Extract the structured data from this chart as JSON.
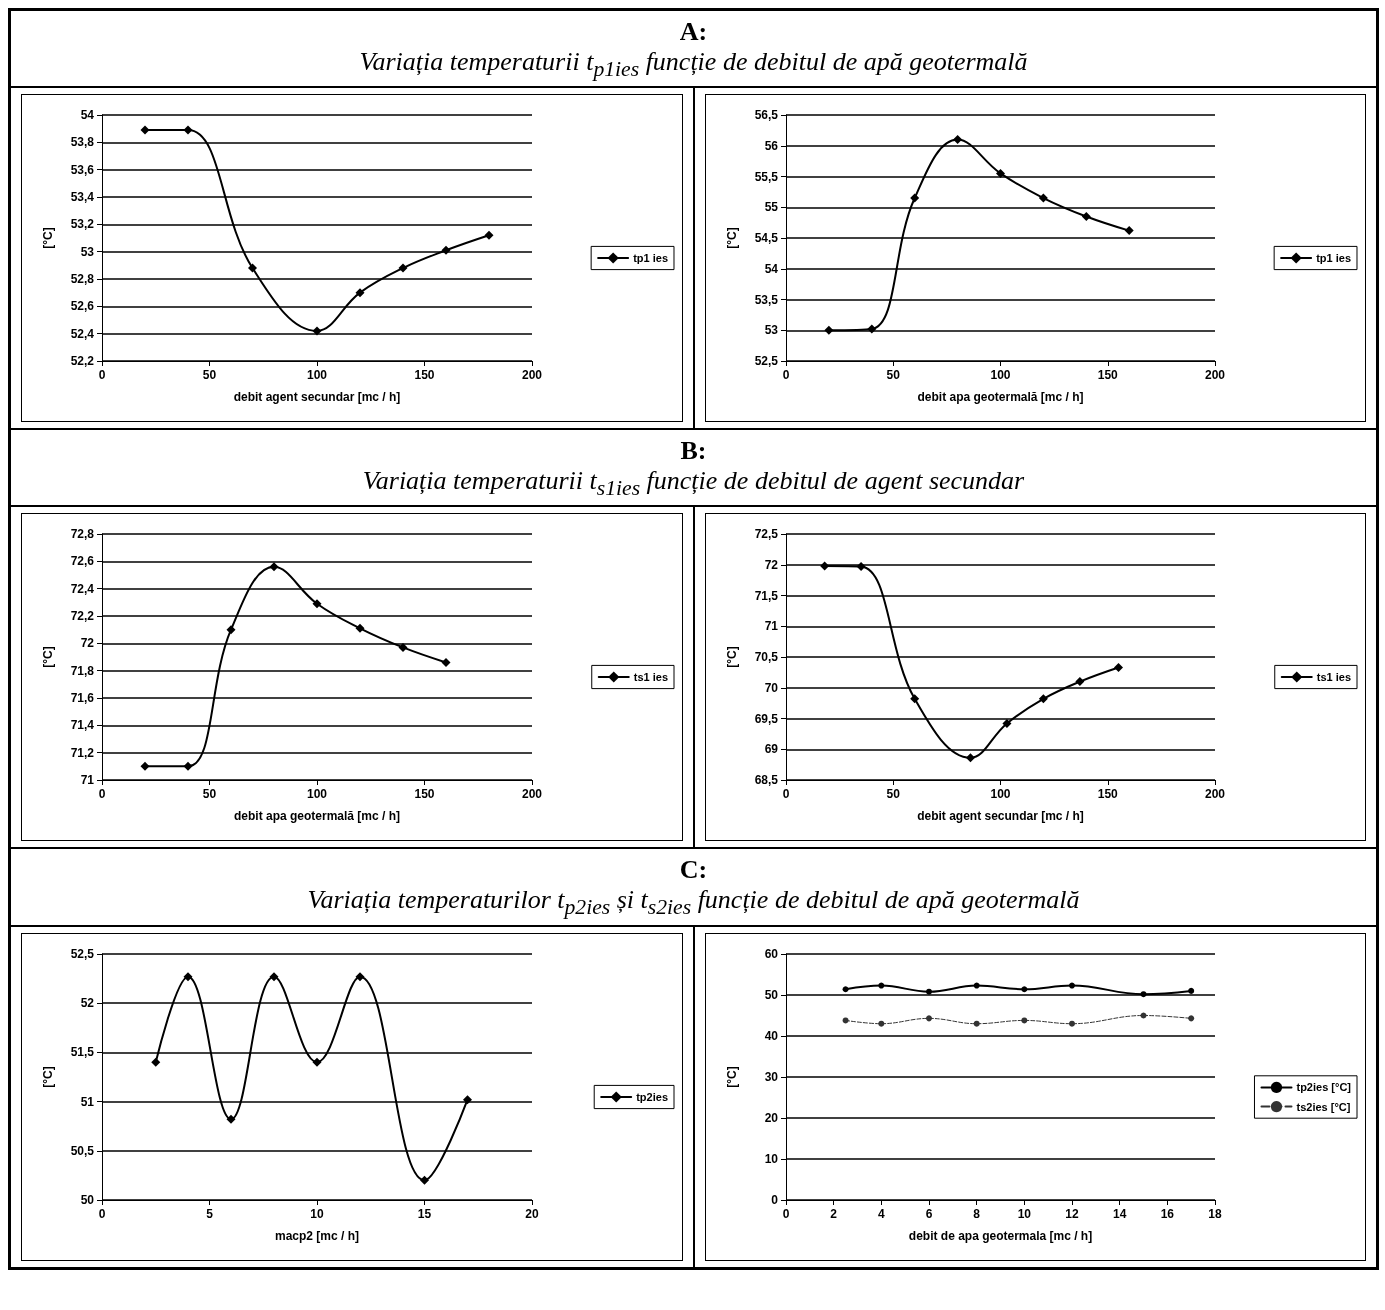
{
  "chart_data": [
    {
      "type": "other",
      "title": "A:",
      "subtitle": "Variația temperaturii t$_{p1ies}$ funcție de debitul de apă geotermală"
    },
    {
      "type": "line",
      "xlabel": "debit agent secundar [mc / h]",
      "ylabel": "[°C]",
      "xlim": [
        0,
        200
      ],
      "xticks": [
        0,
        50,
        100,
        150,
        200
      ],
      "ylim": [
        52.2,
        54
      ],
      "yticks": [
        {
          "value": 52.2,
          "label": "52,2"
        },
        {
          "value": 52.4,
          "label": "52,4"
        },
        {
          "value": 52.6,
          "label": "52,6"
        },
        {
          "value": 52.8,
          "label": "52,8"
        },
        53,
        {
          "value": 53.2,
          "label": "53,2"
        },
        {
          "value": 53.4,
          "label": "53,4"
        },
        {
          "value": 53.6,
          "label": "53,6"
        },
        {
          "value": 53.8,
          "label": "53,8"
        },
        54
      ],
      "grid": "y",
      "legend": "right",
      "marker": "diamond",
      "line_style": "solid",
      "x": [
        20,
        40,
        70,
        100,
        120,
        140,
        160,
        180
      ],
      "series": [
        {
          "name": "tp1 ies",
          "color": "#000000",
          "values": [
            53.89,
            53.89,
            52.88,
            52.42,
            52.7,
            52.88,
            53.01,
            53.12
          ]
        }
      ]
    },
    {
      "type": "line",
      "xlabel": "debit apa geotermală [mc / h]",
      "ylabel": "[°C]",
      "xlim": [
        0,
        200
      ],
      "xticks": [
        0,
        50,
        100,
        150,
        200
      ],
      "ylim": [
        52.5,
        56.5
      ],
      "yticks": [
        {
          "value": 52.5,
          "label": "52,5"
        },
        53,
        {
          "value": 53.5,
          "label": "53,5"
        },
        54,
        {
          "value": 54.5,
          "label": "54,5"
        },
        55,
        {
          "value": 55.5,
          "label": "55,5"
        },
        56,
        {
          "value": 56.5,
          "label": "56,5"
        }
      ],
      "grid": "y",
      "legend": "right",
      "marker": "diamond",
      "line_style": "solid",
      "x": [
        20,
        40,
        60,
        80,
        100,
        120,
        140,
        160
      ],
      "series": [
        {
          "name": "tp1 ies",
          "color": "#000000",
          "values": [
            53.0,
            53.02,
            55.15,
            56.1,
            55.55,
            55.15,
            54.85,
            54.62
          ]
        }
      ]
    },
    {
      "type": "other",
      "title": "B:",
      "subtitle": "Variația temperaturii t$_{s1ies}$ funcție de debitul de agent secundar"
    },
    {
      "type": "line",
      "xlabel": "debit apa geotermală [mc / h]",
      "ylabel": "[°C]",
      "xlim": [
        0,
        200
      ],
      "xticks": [
        0,
        50,
        100,
        150,
        200
      ],
      "ylim": [
        71,
        72.8
      ],
      "yticks": [
        71,
        {
          "value": 71.2,
          "label": "71,2"
        },
        {
          "value": 71.4,
          "label": "71,4"
        },
        {
          "value": 71.6,
          "label": "71,6"
        },
        {
          "value": 71.8,
          "label": "71,8"
        },
        72,
        {
          "value": 72.2,
          "label": "72,2"
        },
        {
          "value": 72.4,
          "label": "72,4"
        },
        {
          "value": 72.6,
          "label": "72,6"
        },
        {
          "value": 72.8,
          "label": "72,8"
        }
      ],
      "grid": "y",
      "legend": "right",
      "marker": "diamond",
      "line_style": "solid",
      "x": [
        20,
        40,
        60,
        80,
        100,
        120,
        140,
        160
      ],
      "series": [
        {
          "name": "ts1 ies",
          "color": "#000000",
          "values": [
            71.1,
            71.1,
            72.1,
            72.56,
            72.29,
            72.11,
            71.97,
            71.86
          ]
        }
      ]
    },
    {
      "type": "line",
      "xlabel": "debit agent secundar [mc / h]",
      "ylabel": "[°C]",
      "xlim": [
        0,
        200
      ],
      "xticks": [
        0,
        50,
        100,
        150,
        200
      ],
      "ylim": [
        68.5,
        72.5
      ],
      "yticks": [
        {
          "value": 68.5,
          "label": "68,5"
        },
        69,
        {
          "value": 69.5,
          "label": "69,5"
        },
        70,
        {
          "value": 70.5,
          "label": "70,5"
        },
        71,
        {
          "value": 71.5,
          "label": "71,5"
        },
        72,
        {
          "value": 72.5,
          "label": "72,5"
        }
      ],
      "grid": "y",
      "legend": "right",
      "marker": "diamond",
      "line_style": "solid",
      "x": [
        18,
        35,
        60,
        86,
        103,
        120,
        137,
        155
      ],
      "series": [
        {
          "name": "ts1 ies",
          "color": "#000000",
          "values": [
            71.98,
            71.97,
            69.82,
            68.86,
            69.42,
            69.82,
            70.1,
            70.33
          ]
        }
      ]
    },
    {
      "type": "other",
      "title": "C:",
      "subtitle": "Variația temperaturilor t$_{p2ies}$ și t$_{s2ies}$ funcție de debitul de apă geotermală"
    },
    {
      "type": "line",
      "xlabel": "macp2 [mc / h]",
      "ylabel": "[°C]",
      "xlim": [
        0,
        20
      ],
      "xticks": [
        0,
        5,
        10,
        15,
        20
      ],
      "ylim": [
        50,
        52.5
      ],
      "yticks": [
        50,
        {
          "value": 50.5,
          "label": "50,5"
        },
        51,
        {
          "value": 51.5,
          "label": "51,5"
        },
        52,
        {
          "value": 52.5,
          "label": "52,5"
        }
      ],
      "grid": "y",
      "legend": "right",
      "marker": "diamond",
      "line_style": "solid",
      "x": [
        2.5,
        4,
        6,
        8,
        10,
        12,
        15,
        17
      ],
      "series": [
        {
          "name": "tp2ies",
          "color": "#000000",
          "values": [
            51.4,
            52.27,
            50.82,
            52.27,
            51.4,
            52.27,
            50.2,
            51.02
          ]
        }
      ]
    },
    {
      "type": "line",
      "xlabel": "debit de apa geotermala [mc / h]",
      "ylabel": "[°C]",
      "xlim": [
        0,
        18
      ],
      "xticks": [
        0,
        2,
        4,
        6,
        8,
        10,
        12,
        14,
        16,
        18
      ],
      "ylim": [
        0,
        60
      ],
      "yticks": [
        0,
        10,
        20,
        30,
        40,
        50,
        60
      ],
      "grid": "y",
      "legend": "right",
      "marker": "circle",
      "x": [
        2.5,
        4,
        6,
        8,
        10,
        12,
        15,
        17
      ],
      "series": [
        {
          "name": "tp2ies [°C]",
          "color": "#000000",
          "line_style": "solid",
          "values": [
            51.4,
            52.3,
            50.8,
            52.3,
            51.4,
            52.3,
            50.2,
            51.0
          ]
        },
        {
          "name": "ts2ies [°C]",
          "color": "#333333",
          "line_style": "dashed",
          "values": [
            43.8,
            43.0,
            44.3,
            43.0,
            43.8,
            43.0,
            45.0,
            44.3
          ]
        }
      ]
    }
  ]
}
